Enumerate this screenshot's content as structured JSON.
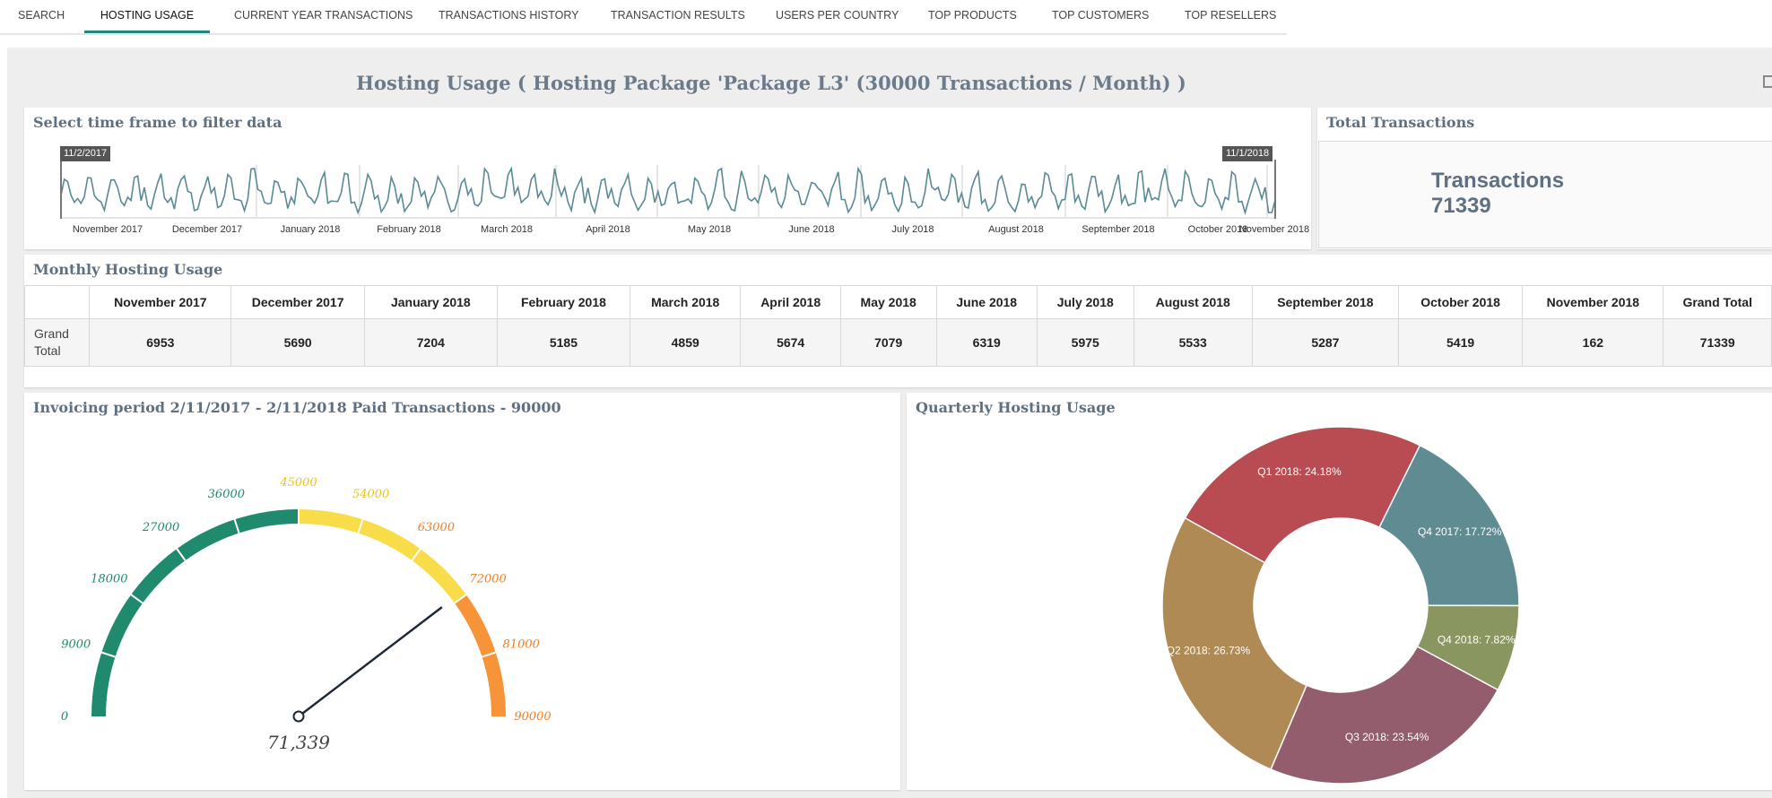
{
  "tabs": [
    {
      "label": "SEARCH"
    },
    {
      "label": "HOSTING USAGE"
    },
    {
      "label": "CURRENT YEAR TRANSACTIONS"
    },
    {
      "label": "TRANSACTIONS HISTORY"
    },
    {
      "label": "TRANSACTION RESULTS"
    },
    {
      "label": "USERS PER COUNTRY"
    },
    {
      "label": "TOP PRODUCTS"
    },
    {
      "label": "TOP CUSTOMERS"
    },
    {
      "label": "TOP RESELLERS"
    }
  ],
  "active_tab": "HOSTING USAGE",
  "page_title": "Hosting Usage ( Hosting Package 'Package L3' (30000 Transactions / Month) )",
  "timeframe": {
    "title": "Select time frame to filter data",
    "range_start": "11/2/2017",
    "range_end": "11/1/2018",
    "month_labels": [
      "November 2017",
      "December 2017",
      "January 2018",
      "February 2018",
      "March 2018",
      "April 2018",
      "May 2018",
      "June 2018",
      "July 2018",
      "August 2018",
      "September 2018",
      "October 2018",
      "November 2018"
    ],
    "line_color": "#5a8a93"
  },
  "total": {
    "title": "Total Transactions",
    "label": "Transactions",
    "value": "71339"
  },
  "monthly": {
    "title": "Monthly Hosting Usage",
    "columns": [
      "November 2017",
      "December 2017",
      "January 2018",
      "February 2018",
      "March 2018",
      "April 2018",
      "May 2018",
      "June 2018",
      "July 2018",
      "August 2018",
      "September 2018",
      "October 2018",
      "November 2018",
      "Grand Total"
    ],
    "row_label": "Grand Total",
    "values": [
      "6953",
      "5690",
      "7204",
      "5185",
      "4859",
      "5674",
      "7079",
      "6319",
      "5975",
      "5533",
      "5287",
      "5419",
      "162",
      "71339"
    ]
  },
  "gauge": {
    "title": "Invoicing period 2/11/2017 - 2/11/2018 Paid Transactions - 90000",
    "min": 0,
    "max": 90000,
    "value": 71339,
    "value_label": "71,339",
    "ticks": [
      "0",
      "9000",
      "18000",
      "27000",
      "36000",
      "45000",
      "54000",
      "63000",
      "72000",
      "81000",
      "90000"
    ],
    "bands": [
      {
        "from": 0,
        "to": 45000,
        "color": "#1f8a6e"
      },
      {
        "from": 45000,
        "to": 72000,
        "color": "#f9dc4a"
      },
      {
        "from": 72000,
        "to": 90000,
        "color": "#f7943a"
      }
    ]
  },
  "chart_data": {
    "type": "pie",
    "title": "Quarterly Hosting Usage",
    "donut": true,
    "slices": [
      {
        "label": "Q4 2017: 17.72%",
        "value": 17.72,
        "color": "#5f8c93"
      },
      {
        "label": "Q4 2018: 7.82%",
        "value": 7.82,
        "color": "#8a9660"
      },
      {
        "label": "Q3 2018: 23.54%",
        "value": 23.54,
        "color": "#935d6e"
      },
      {
        "label": "Q2 2018: 26.73%",
        "value": 26.73,
        "color": "#b08a55"
      },
      {
        "label": "Q1 2018: 24.18%",
        "value": 24.18,
        "color": "#b94b52"
      }
    ]
  }
}
